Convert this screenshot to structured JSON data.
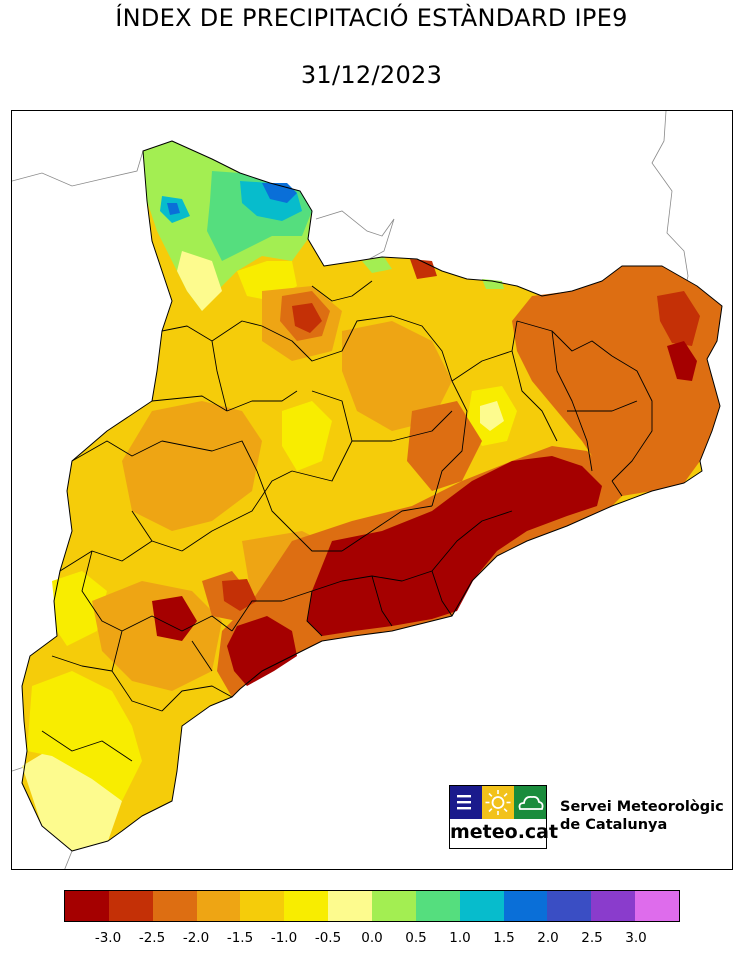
{
  "title": "ÍNDEX DE PRECIPITACIÓ ESTÀNDARD IPE9",
  "date": "31/12/2023",
  "organization": {
    "logo_text": "meteo.cat",
    "name_line1": "Servei Meteorològic",
    "name_line2": "de Catalunya",
    "logo_colors": [
      "#1a1a8c",
      "#f2c21a",
      "#1a8c3c"
    ]
  },
  "legend": {
    "colors": [
      "#a50000",
      "#c43006",
      "#dd6e12",
      "#eea514",
      "#f5cc0a",
      "#f8ed00",
      "#fdfb8e",
      "#a3ee52",
      "#55de7e",
      "#07bccc",
      "#0a6fd8",
      "#3a4ec4",
      "#8a3ccc",
      "#de6cec"
    ],
    "tick_labels": [
      "-3.0",
      "-2.5",
      "-2.0",
      "-1.5",
      "-1.0",
      "-0.5",
      "0.0",
      "0.5",
      "1.0",
      "1.5",
      "2.0",
      "2.5",
      "3.0"
    ]
  }
}
